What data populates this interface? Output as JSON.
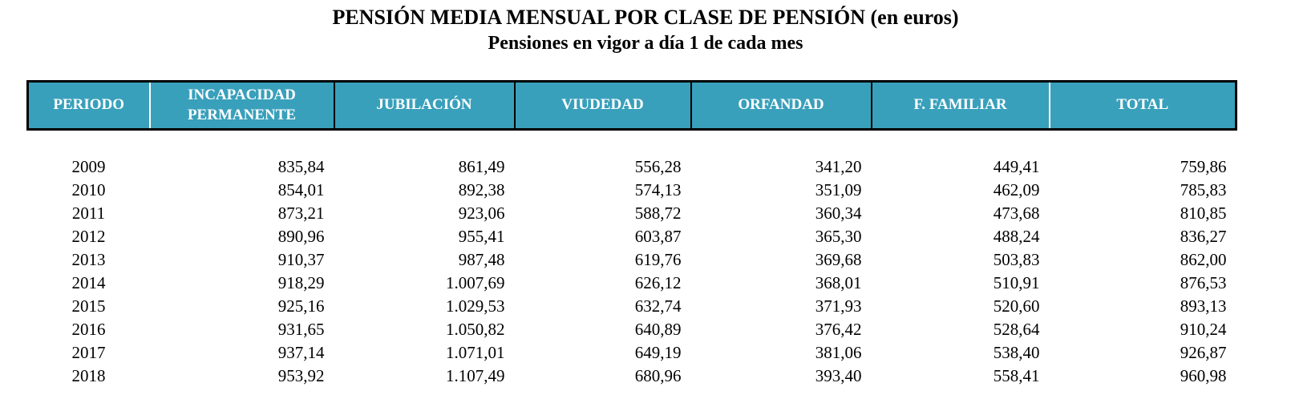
{
  "title": "PENSIÓN MEDIA MENSUAL POR CLASE DE PENSIÓN (en euros)",
  "subtitle": "Pensiones en vigor a día 1 de cada mes",
  "colors": {
    "header_bg": "#39A0BB",
    "header_text": "#FFFFFF",
    "border": "#000000",
    "body_text": "#000000"
  },
  "table": {
    "columns": [
      "PERIODO",
      "INCAPACIDAD PERMANENTE",
      "JUBILACIÓN",
      "VIUDEDAD",
      "ORFANDAD",
      "F. FAMILIAR",
      "TOTAL"
    ],
    "rows": [
      [
        "2009",
        "835,84",
        "861,49",
        "556,28",
        "341,20",
        "449,41",
        "759,86"
      ],
      [
        "2010",
        "854,01",
        "892,38",
        "574,13",
        "351,09",
        "462,09",
        "785,83"
      ],
      [
        "2011",
        "873,21",
        "923,06",
        "588,72",
        "360,34",
        "473,68",
        "810,85"
      ],
      [
        "2012",
        "890,96",
        "955,41",
        "603,87",
        "365,30",
        "488,24",
        "836,27"
      ],
      [
        "2013",
        "910,37",
        "987,48",
        "619,76",
        "369,68",
        "503,83",
        "862,00"
      ],
      [
        "2014",
        "918,29",
        "1.007,69",
        "626,12",
        "368,01",
        "510,91",
        "876,53"
      ],
      [
        "2015",
        "925,16",
        "1.029,53",
        "632,74",
        "371,93",
        "520,60",
        "893,13"
      ],
      [
        "2016",
        "931,65",
        "1.050,82",
        "640,89",
        "376,42",
        "528,64",
        "910,24"
      ],
      [
        "2017",
        "937,14",
        "1.071,01",
        "649,19",
        "381,06",
        "538,40",
        "926,87"
      ],
      [
        "2018",
        "953,92",
        "1.107,49",
        "680,96",
        "393,40",
        "558,41",
        "960,98"
      ]
    ]
  }
}
